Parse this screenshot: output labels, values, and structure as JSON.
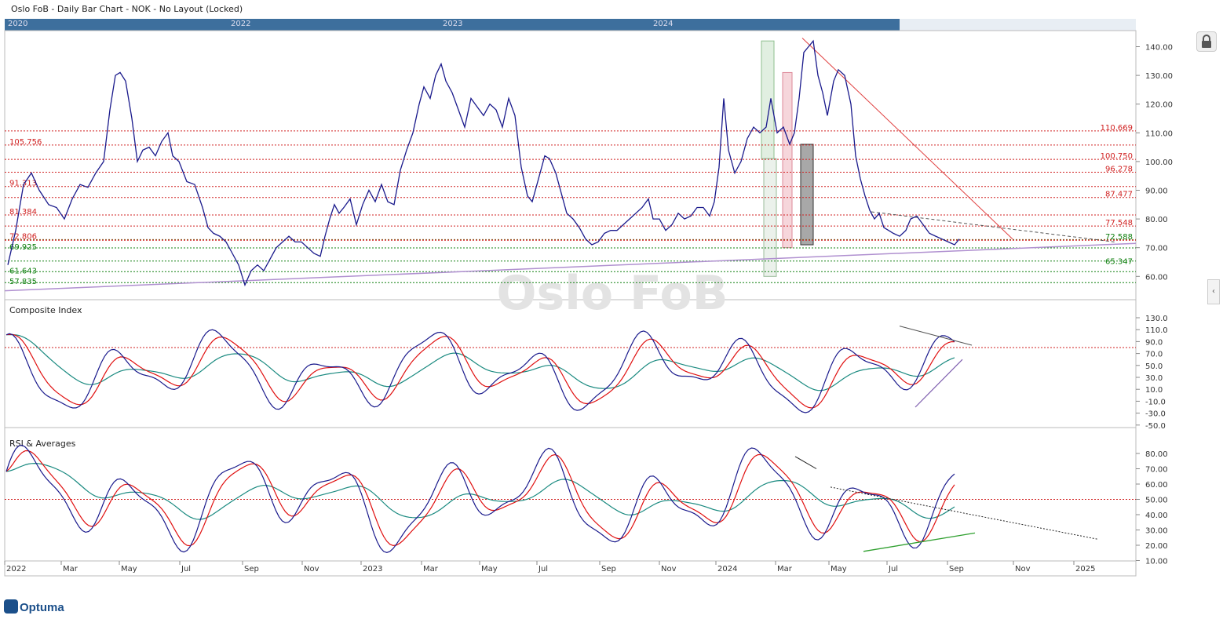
{
  "window_title": "Oslo FoB - Daily Bar Chart - NOK - No Layout (Locked)",
  "watermark": "Oslo FoB",
  "logo_text": "Optuma",
  "overview_years": [
    "2020",
    "2022",
    "2023",
    "2024"
  ],
  "colors": {
    "price": "#1a1a8c",
    "fast_ma": "#e01010",
    "slow_ma": "#1a8a80",
    "resistance": "#d02020",
    "support": "#108010",
    "trend": "#b090d0",
    "overview": "#3d6f9d"
  },
  "chart_data": [
    {
      "type": "line",
      "title": "",
      "x_labels": [
        "2022",
        "Mar",
        "May",
        "Jul",
        "Sep",
        "Nov",
        "2023",
        "Mar",
        "May",
        "Jul",
        "Sep",
        "Nov",
        "2024",
        "Mar",
        "May",
        "Jul",
        "Sep",
        "Nov",
        "2025"
      ],
      "y_ticks": [
        "140.00",
        "130.00",
        "120.00",
        "110.00",
        "100.00",
        "90.00",
        "80.00",
        "70.00",
        "60.00"
      ],
      "ylim": [
        55,
        145
      ],
      "series": [
        {
          "values": [
            [
              0,
              64
            ],
            [
              10,
              76
            ],
            [
              20,
              92
            ],
            [
              30,
              96
            ],
            [
              40,
              90
            ],
            [
              52,
              85
            ],
            [
              62,
              84
            ],
            [
              72,
              80
            ],
            [
              82,
              87
            ],
            [
              92,
              92
            ],
            [
              102,
              91
            ],
            [
              112,
              96
            ],
            [
              122,
              100
            ],
            [
              130,
              118
            ],
            [
              137,
              130
            ],
            [
              143,
              131
            ],
            [
              150,
              128
            ],
            [
              158,
              115
            ],
            [
              165,
              100
            ],
            [
              172,
              104
            ],
            [
              180,
              105
            ],
            [
              188,
              102
            ],
            [
              196,
              107
            ],
            [
              204,
              110
            ],
            [
              210,
              102
            ],
            [
              218,
              100
            ],
            [
              228,
              93
            ],
            [
              238,
              92
            ],
            [
              248,
              84
            ],
            [
              255,
              77
            ],
            [
              262,
              75
            ],
            [
              270,
              74
            ],
            [
              278,
              72
            ],
            [
              286,
              68
            ],
            [
              294,
              64
            ],
            [
              302,
              57
            ],
            [
              310,
              62
            ],
            [
              318,
              64
            ],
            [
              326,
              62
            ],
            [
              334,
              66
            ],
            [
              342,
              70
            ],
            [
              350,
              72
            ],
            [
              358,
              74
            ],
            [
              366,
              72
            ],
            [
              374,
              72
            ],
            [
              382,
              70
            ],
            [
              390,
              68
            ],
            [
              398,
              67
            ],
            [
              404,
              74
            ],
            [
              410,
              80
            ],
            [
              416,
              85
            ],
            [
              422,
              82
            ],
            [
              428,
              84
            ],
            [
              436,
              87
            ],
            [
              444,
              78
            ],
            [
              452,
              85
            ],
            [
              460,
              90
            ],
            [
              468,
              86
            ],
            [
              476,
              92
            ],
            [
              484,
              86
            ],
            [
              492,
              85
            ],
            [
              500,
              97
            ],
            [
              508,
              104
            ],
            [
              516,
              110
            ],
            [
              524,
              120
            ],
            [
              530,
              126
            ],
            [
              538,
              122
            ],
            [
              545,
              130
            ],
            [
              552,
              134
            ],
            [
              558,
              128
            ],
            [
              566,
              124
            ],
            [
              574,
              118
            ],
            [
              582,
              112
            ],
            [
              590,
              122
            ],
            [
              598,
              119
            ],
            [
              606,
              116
            ],
            [
              614,
              120
            ],
            [
              622,
              118
            ],
            [
              630,
              112
            ],
            [
              638,
              122
            ],
            [
              646,
              116
            ],
            [
              654,
              98
            ],
            [
              662,
              88
            ],
            [
              668,
              86
            ],
            [
              676,
              94
            ],
            [
              684,
              102
            ],
            [
              690,
              101
            ],
            [
              698,
              96
            ],
            [
              706,
              88
            ],
            [
              712,
              82
            ],
            [
              720,
              80
            ],
            [
              728,
              77
            ],
            [
              736,
              73
            ],
            [
              744,
              71
            ],
            [
              752,
              72
            ],
            [
              760,
              75
            ],
            [
              768,
              76
            ],
            [
              776,
              76
            ],
            [
              784,
              78
            ],
            [
              792,
              80
            ],
            [
              800,
              82
            ],
            [
              808,
              84
            ],
            [
              816,
              87
            ],
            [
              822,
              80
            ],
            [
              830,
              80
            ],
            [
              838,
              76
            ],
            [
              846,
              78
            ],
            [
              854,
              82
            ],
            [
              862,
              80
            ],
            [
              870,
              81
            ],
            [
              878,
              84
            ],
            [
              886,
              84
            ],
            [
              894,
              81
            ],
            [
              900,
              86
            ],
            [
              906,
              98
            ],
            [
              912,
              122
            ],
            [
              918,
              104
            ],
            [
              926,
              96
            ],
            [
              934,
              100
            ],
            [
              942,
              108
            ],
            [
              950,
              112
            ],
            [
              958,
              110
            ],
            [
              966,
              112
            ],
            [
              972,
              122
            ],
            [
              980,
              110
            ],
            [
              988,
              112
            ],
            [
              996,
              106
            ],
            [
              1002,
              110
            ],
            [
              1008,
              122
            ],
            [
              1014,
              138
            ],
            [
              1020,
              140
            ],
            [
              1026,
              142
            ],
            [
              1032,
              130
            ],
            [
              1038,
              124
            ],
            [
              1044,
              116
            ],
            [
              1052,
              128
            ],
            [
              1058,
              132
            ],
            [
              1066,
              130
            ],
            [
              1074,
              120
            ],
            [
              1080,
              102
            ],
            [
              1086,
              94
            ],
            [
              1092,
              88
            ],
            [
              1098,
              83
            ],
            [
              1104,
              80
            ],
            [
              1110,
              82
            ],
            [
              1116,
              77
            ],
            [
              1122,
              76
            ],
            [
              1128,
              75
            ],
            [
              1136,
              74
            ],
            [
              1144,
              76
            ],
            [
              1150,
              80
            ],
            [
              1158,
              81
            ],
            [
              1166,
              78
            ],
            [
              1174,
              75
            ],
            [
              1182,
              74
            ],
            [
              1190,
              73
            ],
            [
              1198,
              72
            ],
            [
              1206,
              71
            ],
            [
              1212,
              73
            ]
          ]
        }
      ]
    },
    {
      "type": "line",
      "title": "Composite Index",
      "y_ticks": [
        "130.0",
        "110.0",
        "90.0",
        "70.0",
        "50.0",
        "30.0",
        "10.0",
        "-10.0",
        "-30.0",
        "-50.0"
      ],
      "ylim": [
        -50,
        130
      ],
      "series_count": 3
    },
    {
      "type": "line",
      "title": "RSI & Averages",
      "y_ticks": [
        "80.00",
        "70.00",
        "60.00",
        "50.00",
        "40.00",
        "30.00",
        "20.00",
        "10.00"
      ],
      "ylim": [
        10,
        85
      ],
      "series_count": 3
    }
  ],
  "resistance_levels": [
    "110.669",
    "105.756",
    "100.750",
    "96.278",
    "91.313",
    "87.477",
    "81.384",
    "77.548",
    "72.806",
    "72.588"
  ],
  "support_levels": [
    "69.925",
    "65.347",
    "61.643",
    "57.835"
  ],
  "level_values": {
    "110.669": 110.669,
    "105.756": 105.756,
    "100.750": 100.75,
    "96.278": 96.278,
    "91.313": 91.313,
    "87.477": 87.477,
    "81.384": 81.384,
    "77.548": 77.548,
    "72.806": 72.806,
    "72.588": 72.588,
    "69.925": 69.925,
    "65.347": 65.347,
    "61.643": 61.643,
    "57.835": 57.835
  }
}
